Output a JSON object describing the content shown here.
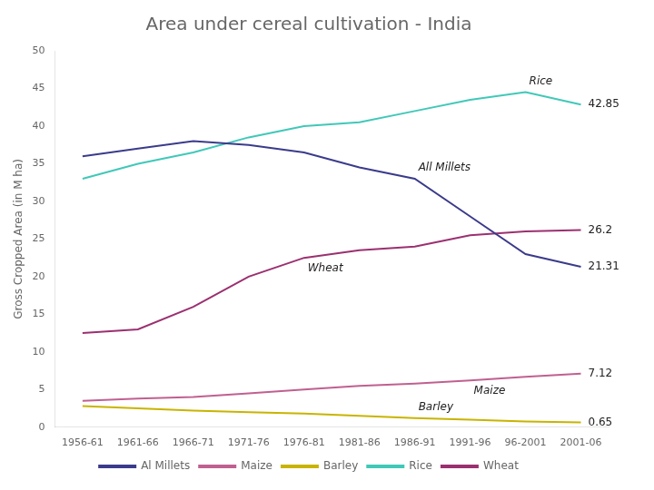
{
  "chart_data": {
    "type": "line",
    "title": "Area under cereal cultivation - India",
    "y_label": "Gross Cropped Area (in M ha)",
    "categories": [
      "1956-61",
      "1961-66",
      "1966-71",
      "1971-76",
      "1976-81",
      "1981-86",
      "1986-91",
      "1991-96",
      "96-2001",
      "2001-06"
    ],
    "series": [
      {
        "name": "Al Millets",
        "color": "#3b3b8c",
        "values": [
          36.0,
          37.0,
          38.0,
          37.5,
          36.5,
          34.5,
          33.0,
          28.0,
          23.0,
          21.31
        ]
      },
      {
        "name": "Maize",
        "color": "#c06090",
        "values": [
          3.5,
          3.8,
          4.0,
          4.5,
          5.0,
          5.5,
          5.8,
          6.2,
          6.7,
          7.12
        ]
      },
      {
        "name": "Barley",
        "color": "#c8b400",
        "values": [
          2.8,
          2.5,
          2.2,
          2.0,
          1.8,
          1.5,
          1.2,
          1.0,
          0.75,
          0.65
        ]
      },
      {
        "name": "Rice",
        "color": "#40c8b8",
        "values": [
          33.0,
          35.0,
          36.5,
          38.5,
          40.0,
          40.5,
          42.0,
          43.5,
          44.5,
          42.85
        ]
      },
      {
        "name": "Wheat",
        "color": "#9b3070",
        "values": [
          12.5,
          13.0,
          16.0,
          20.0,
          22.5,
          23.5,
          24.0,
          25.5,
          26.0,
          26.2
        ]
      }
    ],
    "annotations": [
      {
        "text": "Rice",
        "series": "Rice",
        "x": "96-2001"
      },
      {
        "text": "All Millets",
        "series": "Al Millets",
        "x": "1986-91"
      },
      {
        "text": "Wheat",
        "series": "Wheat",
        "x": "1976-81"
      },
      {
        "text": "Maize",
        "series": "Maize",
        "x": "1991-96"
      },
      {
        "text": "Barley",
        "series": "Barley",
        "x": "1986-91"
      },
      {
        "text": "42.85",
        "series": "Rice",
        "x": "2001-06"
      },
      {
        "text": "26.2",
        "series": "Wheat",
        "x": "2001-06"
      },
      {
        "text": "21.31",
        "series": "Al Millets",
        "x": "2001-06"
      },
      {
        "text": "7.12",
        "series": "Maize",
        "x": "2001-06"
      },
      {
        "text": "0.65",
        "series": "Barley",
        "x": "2001-06"
      }
    ],
    "ylim": [
      0,
      50
    ],
    "yticks": [
      0,
      5,
      10,
      15,
      20,
      25,
      30,
      35,
      40,
      45,
      50
    ],
    "grid": false,
    "legend": "bottom",
    "marker": "none"
  }
}
